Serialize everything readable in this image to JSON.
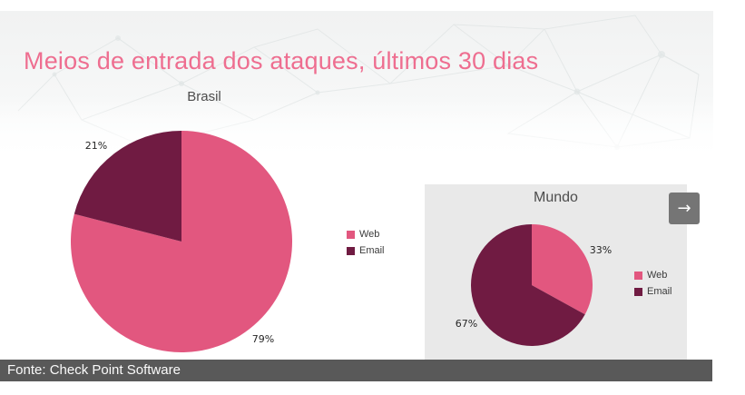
{
  "header": {
    "title": "Meios de entrada dos ataques, últimos 30 dias"
  },
  "nav": {
    "next_icon": "→"
  },
  "source": {
    "text": "Fonte: Check Point Software"
  },
  "theme": {
    "title_pink": "#ee6e90",
    "accent_pink": "#e2577f",
    "dark_maroon": "#701b42",
    "panel_gray": "#e9e9e9",
    "bar_gray": "#595959",
    "button_gray": "#757575"
  },
  "chart_data": [
    {
      "type": "pie",
      "title": "Brasil",
      "labels": [
        "Web",
        "Email"
      ],
      "values": [
        79,
        21
      ],
      "value_labels": [
        "79%",
        "21%"
      ],
      "colors": [
        "#e2577f",
        "#701b42"
      ],
      "start_angle": "12-oclock",
      "direction": "clockwise",
      "legend_position": "right"
    },
    {
      "type": "pie",
      "title": "Mundo",
      "labels": [
        "Web",
        "Email"
      ],
      "values": [
        33,
        67
      ],
      "value_labels": [
        "33%",
        "67%"
      ],
      "colors": [
        "#e2577f",
        "#701b42"
      ],
      "start_angle": "12-oclock",
      "direction": "clockwise",
      "legend_position": "right"
    }
  ]
}
